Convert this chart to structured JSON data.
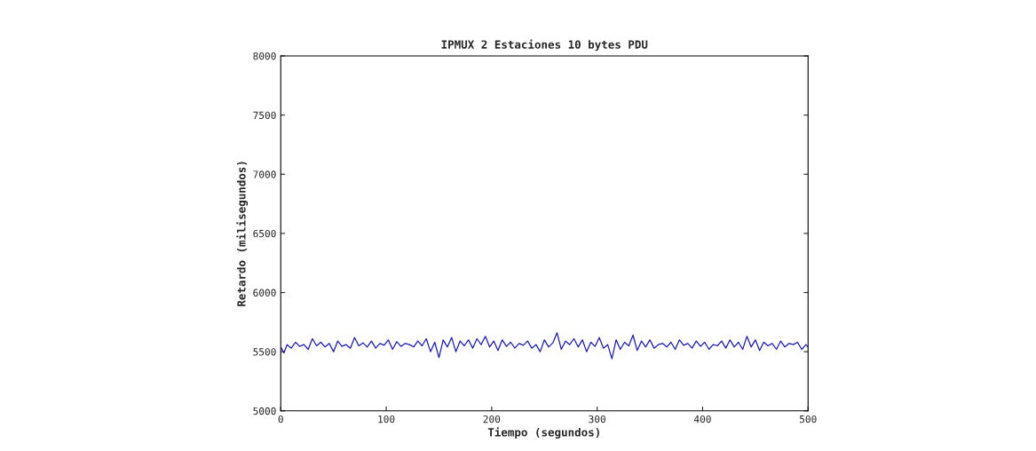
{
  "chart_data": {
    "type": "line",
    "title": "IPMUX 2 Estaciones 10 bytes PDU",
    "xlabel": "Tiempo (segundos)",
    "ylabel": "Retardo (milisegundos)",
    "x": [
      0,
      3,
      6,
      10,
      14,
      18,
      22,
      26,
      30,
      34,
      38,
      42,
      46,
      50,
      54,
      58,
      62,
      66,
      70,
      74,
      78,
      82,
      86,
      90,
      94,
      98,
      102,
      106,
      110,
      114,
      118,
      122,
      126,
      130,
      134,
      138,
      142,
      146,
      150,
      154,
      158,
      162,
      166,
      170,
      174,
      178,
      182,
      186,
      190,
      194,
      198,
      202,
      206,
      210,
      214,
      218,
      222,
      226,
      230,
      234,
      238,
      242,
      246,
      250,
      254,
      258,
      262,
      266,
      270,
      274,
      278,
      282,
      286,
      290,
      294,
      298,
      302,
      306,
      310,
      314,
      318,
      322,
      326,
      330,
      334,
      338,
      342,
      346,
      350,
      354,
      358,
      362,
      366,
      370,
      374,
      378,
      382,
      386,
      390,
      394,
      398,
      402,
      406,
      410,
      414,
      418,
      422,
      426,
      430,
      434,
      438,
      442,
      446,
      450,
      454,
      458,
      462,
      466,
      470,
      474,
      478,
      482,
      486,
      490,
      494,
      498,
      500
    ],
    "series": [
      {
        "color": "#1a1ab4",
        "values": [
          5540,
          5490,
          5560,
          5530,
          5580,
          5545,
          5560,
          5520,
          5610,
          5550,
          5580,
          5540,
          5570,
          5500,
          5590,
          5545,
          5560,
          5530,
          5620,
          5550,
          5575,
          5540,
          5590,
          5530,
          5570,
          5555,
          5600,
          5520,
          5585,
          5545,
          5570,
          5560,
          5540,
          5590,
          5550,
          5610,
          5500,
          5580,
          5450,
          5600,
          5540,
          5620,
          5500,
          5590,
          5550,
          5600,
          5530,
          5610,
          5560,
          5630,
          5540,
          5590,
          5510,
          5600,
          5545,
          5580,
          5530,
          5570,
          5555,
          5590,
          5530,
          5560,
          5500,
          5600,
          5540,
          5575,
          5660,
          5520,
          5590,
          5560,
          5610,
          5540,
          5600,
          5500,
          5580,
          5545,
          5620,
          5530,
          5560,
          5440,
          5600,
          5520,
          5580,
          5550,
          5640,
          5510,
          5590,
          5540,
          5600,
          5530,
          5560,
          5570,
          5540,
          5580,
          5520,
          5600,
          5555,
          5570,
          5530,
          5590,
          5545,
          5580,
          5520,
          5560,
          5550,
          5590,
          5530,
          5600,
          5540,
          5580,
          5520,
          5630,
          5540,
          5600,
          5510,
          5580,
          5550,
          5570,
          5520,
          5590,
          5540,
          5570,
          5560,
          5580,
          5520,
          5560,
          5540
        ]
      }
    ],
    "xlim": [
      0,
      500
    ],
    "xticks": [
      0,
      100,
      200,
      300,
      400,
      500
    ],
    "ylim": [
      5000,
      8000
    ],
    "yticks": [
      5000,
      5500,
      6000,
      6500,
      7000,
      7500,
      8000
    ],
    "grid": false
  }
}
